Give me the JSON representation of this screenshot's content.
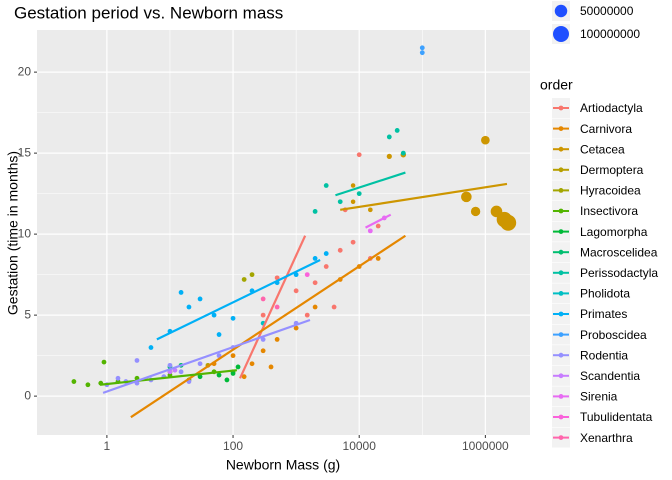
{
  "chart_data": {
    "type": "scatter",
    "title": "Gestation period vs. Newborn mass",
    "x_label": "Newborn Mass (g)",
    "y_label": "Gestation (time in months)",
    "log_x": true,
    "grid": true,
    "xlim": [
      0.078,
      5100000
    ],
    "xticks": [
      1,
      100,
      10000,
      1000000
    ],
    "xminor": [
      10,
      1000,
      100000
    ],
    "ylim": [
      -2.4,
      22.6
    ],
    "yticks": [
      0,
      5,
      10,
      15,
      20
    ],
    "yminor": [
      2.5,
      7.5,
      12.5,
      17.5
    ],
    "legend_title": "order",
    "legend_position": "right",
    "size_breaks": [
      50000000,
      100000000
    ],
    "size_legend_color": "#1f4fff",
    "series": [
      {
        "name": "Artiodactyla",
        "color": "#F8766D",
        "x": [
          300,
          500,
          1000,
          2000,
          3000,
          5000,
          8000,
          15000,
          20000,
          6000,
          10000,
          4000,
          1500
        ],
        "y": [
          5.0,
          7.3,
          6.5,
          7.0,
          8.0,
          9.0,
          9.5,
          8.5,
          10.5,
          11.5,
          14.9,
          5.5,
          5.0
        ],
        "fit": {
          "x": [
            129,
            1390
          ],
          "y": [
            1.1,
            9.9
          ]
        }
      },
      {
        "name": "Carnivora",
        "color": "#E58700",
        "x": [
          10,
          50,
          100,
          200,
          300,
          500,
          1000,
          2000,
          5000,
          10000,
          20000,
          400,
          150
        ],
        "y": [
          1.5,
          2.0,
          2.5,
          2.0,
          2.8,
          3.5,
          4.2,
          5.5,
          7.2,
          8.0,
          8.5,
          1.8,
          1.2
        ],
        "fit": {
          "x": [
            2.4,
            54000
          ],
          "y": [
            -1.3,
            9.9
          ]
        }
      },
      {
        "name": "Cetacea",
        "color": "#CD9600",
        "x": [
          8000,
          15000,
          30000,
          50000,
          8000,
          500000,
          700000,
          1000000,
          1500000,
          2000000,
          2300000
        ],
        "y": [
          12.0,
          11.5,
          14.8,
          14.9,
          13.0,
          12.3,
          11.4,
          15.8,
          11.4,
          10.9,
          10.7
        ],
        "sizes": [
          200000,
          300000,
          1000000,
          1500000,
          200000,
          30000000,
          20000000,
          15000000,
          40000000,
          90000000,
          100000000
        ],
        "fit": {
          "x": [
            5000,
            2200000
          ],
          "y": [
            11.5,
            13.1
          ]
        }
      },
      {
        "name": "Dermoptera",
        "color": "#B79F00",
        "x": [
          40
        ],
        "y": [
          1.9
        ]
      },
      {
        "name": "Hyracoidea",
        "color": "#A3A500",
        "x": [
          200,
          150
        ],
        "y": [
          7.5,
          7.2
        ]
      },
      {
        "name": "Insectivora",
        "color": "#53B400",
        "x": [
          0.3,
          0.5,
          0.8,
          1.5,
          3,
          10,
          50,
          100,
          0.9,
          20
        ],
        "y": [
          0.9,
          0.7,
          0.8,
          0.9,
          1.1,
          1.3,
          1.5,
          1.5,
          2.1,
          1.0
        ],
        "fit": {
          "x": [
            0.78,
            115
          ],
          "y": [
            0.7,
            1.6
          ]
        }
      },
      {
        "name": "Lagomorpha",
        "color": "#00BA38",
        "x": [
          30,
          60,
          100,
          120,
          80
        ],
        "y": [
          1.2,
          1.3,
          1.4,
          1.8,
          1.0
        ]
      },
      {
        "name": "Macroscelidea",
        "color": "#00BE70",
        "x": [
          10,
          15
        ],
        "y": [
          1.8,
          1.9
        ]
      },
      {
        "name": "Perissodactyla",
        "color": "#00C1A3",
        "x": [
          2000,
          5000,
          10000,
          30000,
          40000,
          50000,
          3000
        ],
        "y": [
          11.4,
          12.0,
          12.5,
          16.0,
          16.4,
          15.0,
          13.0
        ],
        "fit": {
          "x": [
            4200,
            54000
          ],
          "y": [
            12.4,
            13.8
          ]
        }
      },
      {
        "name": "Pholidota",
        "color": "#00BFC4",
        "x": [
          300
        ],
        "y": [
          4.5
        ]
      },
      {
        "name": "Primates",
        "color": "#00B0F6",
        "x": [
          5,
          10,
          20,
          30,
          50,
          100,
          200,
          500,
          1000,
          2000,
          3000,
          15,
          60
        ],
        "y": [
          3.0,
          4.0,
          5.5,
          6.0,
          5.0,
          4.8,
          6.5,
          7.0,
          7.5,
          8.5,
          8.8,
          6.4,
          3.8
        ],
        "fit": {
          "x": [
            6.2,
            2400
          ],
          "y": [
            3.5,
            8.4
          ]
        }
      },
      {
        "name": "Proboscidea",
        "color": "#3DA1FF",
        "x": [
          100000,
          100000
        ],
        "y": [
          21.2,
          21.5
        ]
      },
      {
        "name": "Rodentia",
        "color": "#9590FF",
        "x": [
          1,
          2,
          3,
          5,
          8,
          15,
          30,
          60,
          100,
          300,
          1000,
          3,
          20,
          1.5,
          10
        ],
        "y": [
          0.7,
          0.9,
          0.8,
          1.0,
          1.2,
          1.5,
          2.0,
          2.5,
          3.0,
          3.5,
          4.5,
          2.2,
          0.9,
          1.1,
          1.9
        ],
        "fit": {
          "x": [
            0.87,
            1660
          ],
          "y": [
            0.2,
            4.7
          ]
        }
      },
      {
        "name": "Scandentia",
        "color": "#C77CFF",
        "x": [
          10,
          12
        ],
        "y": [
          1.5,
          1.6
        ]
      },
      {
        "name": "Sirenia",
        "color": "#E76BF3",
        "x": [
          15000,
          25000
        ],
        "y": [
          10.2,
          11.0
        ],
        "fit": {
          "x": [
            12600,
            31600
          ],
          "y": [
            10.4,
            11.2
          ]
        }
      },
      {
        "name": "Tubulidentata",
        "color": "#FA62DB",
        "x": [
          1500
        ],
        "y": [
          7.5
        ]
      },
      {
        "name": "Xenarthra",
        "color": "#FF65AC",
        "x": [
          300,
          500
        ],
        "y": [
          6.0,
          5.5
        ]
      }
    ]
  }
}
